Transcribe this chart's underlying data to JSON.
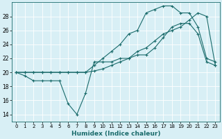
{
  "title": "",
  "xlabel": "Humidex (Indice chaleur)",
  "bg_color": "#d8eff5",
  "grid_color": "#ffffff",
  "line_color": "#1a6b6b",
  "xlim": [
    -0.5,
    23.5
  ],
  "ylim": [
    13,
    30
  ],
  "yticks": [
    14,
    16,
    18,
    20,
    22,
    24,
    26,
    28
  ],
  "xticks": [
    0,
    1,
    2,
    3,
    4,
    5,
    6,
    7,
    8,
    9,
    10,
    11,
    12,
    13,
    14,
    15,
    16,
    17,
    18,
    19,
    20,
    21,
    22,
    23
  ],
  "series1_x": [
    0,
    1,
    2,
    3,
    4,
    5,
    6,
    7,
    8,
    9,
    10,
    11,
    12,
    13,
    14,
    15,
    16,
    17,
    18,
    19,
    20,
    21,
    22,
    23
  ],
  "series1_y": [
    20,
    19.5,
    18.8,
    18.8,
    18.8,
    18.8,
    15.5,
    14,
    17,
    21.5,
    21.5,
    21.5,
    22,
    22,
    22.5,
    22.5,
    23.5,
    25,
    26.5,
    27,
    27,
    25.5,
    21.5,
    21.0
  ],
  "series2_x": [
    0,
    1,
    2,
    3,
    4,
    5,
    6,
    7,
    8,
    9,
    10,
    11,
    12,
    13,
    14,
    15,
    16,
    17,
    18,
    19,
    20,
    21,
    22,
    23
  ],
  "series2_y": [
    20,
    20,
    20,
    20,
    20,
    20,
    20,
    20,
    20,
    20.2,
    20.5,
    21,
    21.5,
    22,
    23,
    23.5,
    24.5,
    25.5,
    26,
    26.5,
    27.5,
    28.5,
    28,
    21
  ],
  "series3_x": [
    0,
    1,
    2,
    3,
    4,
    5,
    6,
    7,
    8,
    9,
    10,
    11,
    12,
    13,
    14,
    15,
    16,
    17,
    18,
    19,
    20,
    21,
    22,
    23
  ],
  "series3_y": [
    20,
    20,
    20,
    20,
    20,
    20,
    20,
    20,
    20,
    21,
    22,
    23,
    24,
    25.5,
    26,
    28.5,
    29,
    29.5,
    29.5,
    28.5,
    28.5,
    26.5,
    22,
    21.5
  ]
}
